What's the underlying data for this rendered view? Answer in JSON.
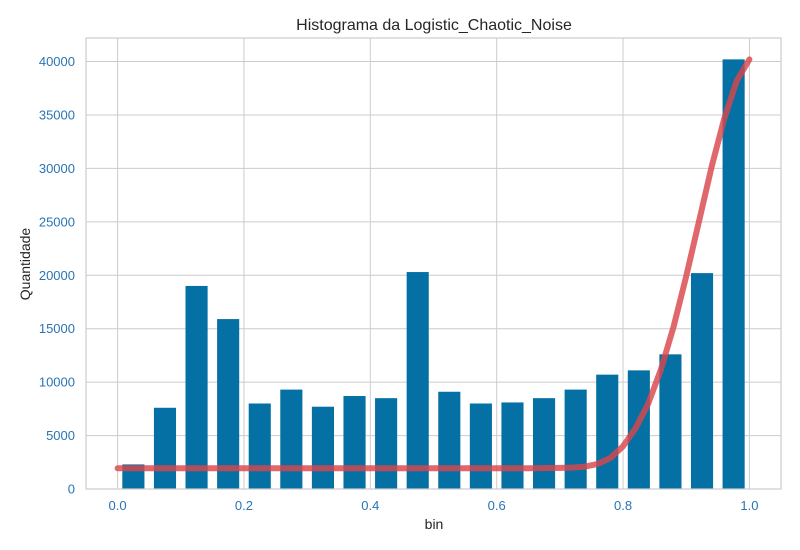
{
  "chart_data": {
    "type": "bar",
    "title": "Histograma da Logistic_Chaotic_Noise",
    "xlabel": "bin",
    "ylabel": "Quantidade",
    "xlim": [
      -0.05,
      1.05
    ],
    "ylim": [
      0,
      42200
    ],
    "xticks": [
      0.0,
      0.2,
      0.4,
      0.6,
      0.8,
      1.0
    ],
    "xtick_labels": [
      "0.0",
      "0.2",
      "0.4",
      "0.6",
      "0.8",
      "1.0"
    ],
    "yticks": [
      0,
      5000,
      10000,
      15000,
      20000,
      25000,
      30000,
      35000,
      40000
    ],
    "ytick_labels": [
      "0",
      "5000",
      "10000",
      "15000",
      "20000",
      "25000",
      "30000",
      "35000",
      "40000"
    ],
    "grid": true,
    "bin_centers": [
      0.025,
      0.075,
      0.125,
      0.175,
      0.225,
      0.275,
      0.325,
      0.375,
      0.425,
      0.475,
      0.525,
      0.575,
      0.625,
      0.675,
      0.725,
      0.775,
      0.825,
      0.875,
      0.925,
      0.975
    ],
    "bin_width": 0.035,
    "values": [
      2300,
      7600,
      19000,
      15900,
      8000,
      9300,
      7700,
      8700,
      8500,
      20300,
      9100,
      8000,
      8100,
      8500,
      9300,
      10700,
      11100,
      12600,
      20200,
      40200
    ],
    "curve": {
      "type": "line",
      "x": [
        0.0,
        0.05,
        0.1,
        0.15,
        0.2,
        0.25,
        0.3,
        0.35,
        0.4,
        0.45,
        0.5,
        0.55,
        0.6,
        0.65,
        0.7,
        0.72,
        0.74,
        0.76,
        0.78,
        0.8,
        0.82,
        0.84,
        0.86,
        0.88,
        0.9,
        0.92,
        0.94,
        0.96,
        0.98,
        1.0
      ],
      "y": [
        1950,
        1950,
        1950,
        1950,
        1950,
        1950,
        1950,
        1950,
        1950,
        1950,
        1950,
        1950,
        1950,
        1950,
        1970,
        2000,
        2100,
        2350,
        2900,
        4000,
        5700,
        8000,
        11200,
        15200,
        19900,
        25000,
        30100,
        34600,
        38200,
        40200
      ]
    },
    "colors": {
      "bar": "#0570a3",
      "curve": "#d9474d",
      "grid": "#cccccc",
      "tick_text": "#2a74b4",
      "text": "#262626"
    }
  }
}
